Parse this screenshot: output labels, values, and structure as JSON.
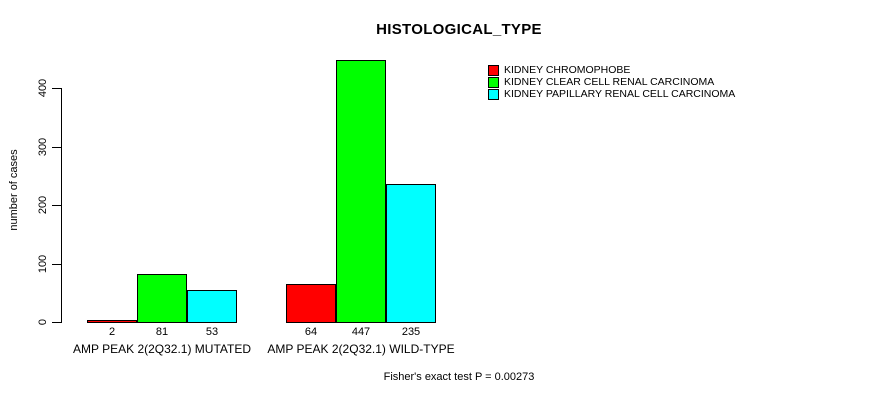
{
  "chart_data": {
    "type": "bar",
    "title": "HISTOLOGICAL_TYPE",
    "ylabel": "number of cases",
    "xlabel": "",
    "categories": [
      "AMP PEAK 2(2Q32.1) MUTATED",
      "AMP PEAK 2(2Q32.1) WILD-TYPE"
    ],
    "series": [
      {
        "name": "KIDNEY CHROMOPHOBE",
        "color": "#ff0000",
        "values": [
          2,
          64
        ]
      },
      {
        "name": "KIDNEY CLEAR CELL RENAL CARCINOMA",
        "color": "#00ff00",
        "values": [
          81,
          447
        ]
      },
      {
        "name": "KIDNEY PAPILLARY RENAL CELL CARCINOMA",
        "color": "#00ffff",
        "values": [
          53,
          235
        ]
      }
    ],
    "bar_value_labels": [
      [
        2,
        81,
        53
      ],
      [
        64,
        447,
        235
      ]
    ],
    "yticks": [
      0,
      100,
      200,
      300,
      400
    ],
    "ylim": [
      0,
      460
    ],
    "grid": false,
    "legend_position": "top-right",
    "footer": "Fisher's exact test P = 0.00273"
  }
}
